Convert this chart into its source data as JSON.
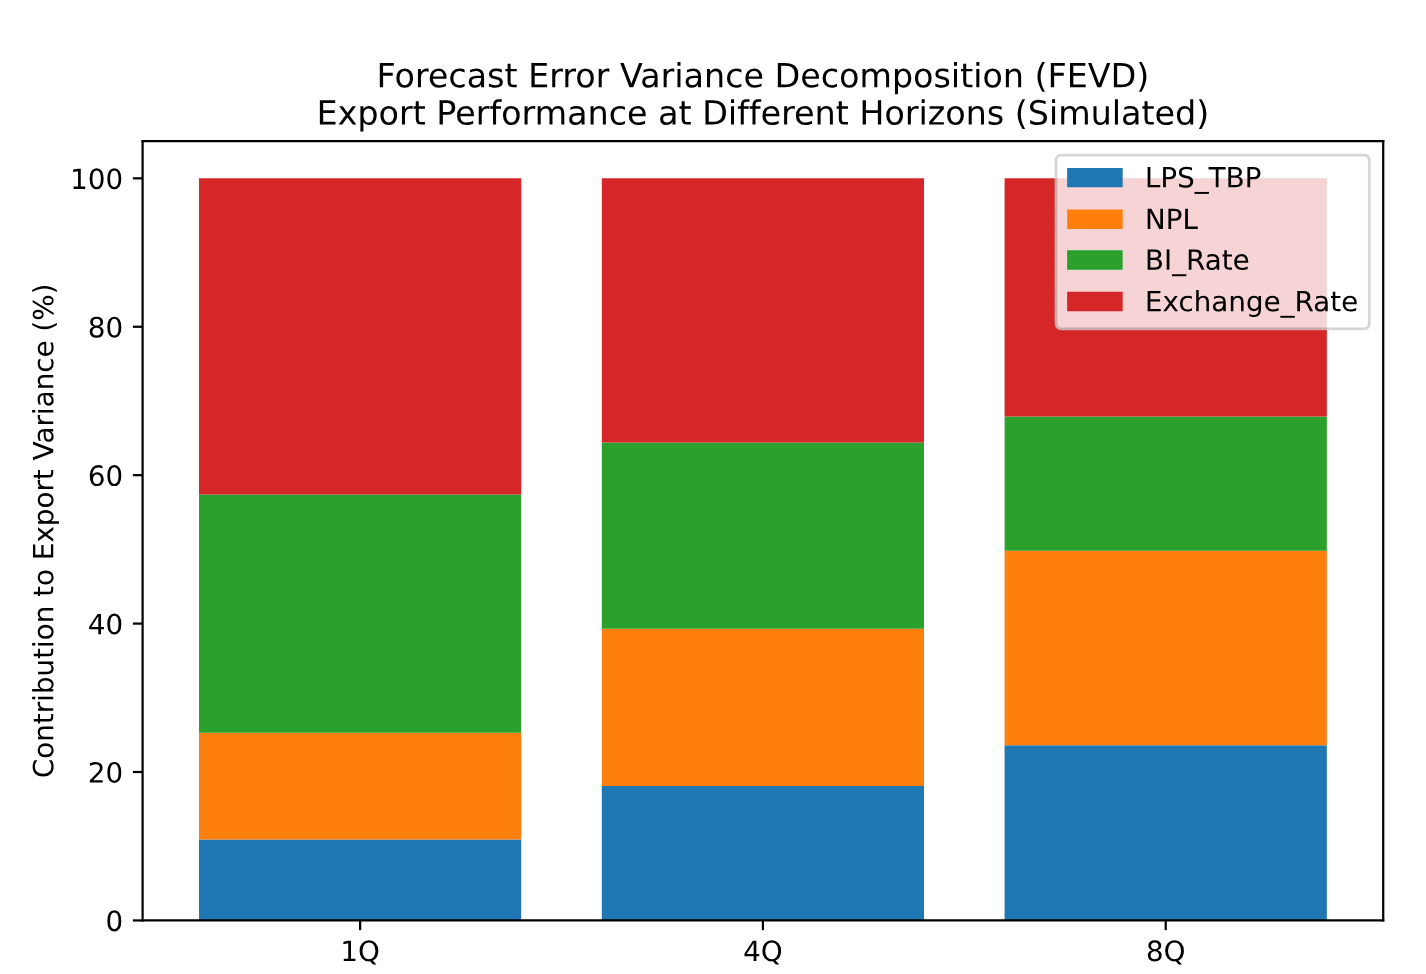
{
  "chart_data": {
    "type": "bar",
    "stacked": true,
    "title": "Forecast Error Variance Decomposition (FEVD)\nExport Performance at Different Horizons (Simulated)",
    "ylabel": "Contribution to Export Variance (%)",
    "categories": [
      "1Q",
      "4Q",
      "8Q"
    ],
    "series": [
      {
        "name": "LPS_TBP",
        "color": "#1f77b4",
        "values": [
          10.9,
          18.1,
          23.6
        ]
      },
      {
        "name": "NPL",
        "color": "#ff7f0e",
        "values": [
          14.4,
          21.2,
          26.2
        ]
      },
      {
        "name": "BI_Rate",
        "color": "#2ca02c",
        "values": [
          32.1,
          25.1,
          18.1
        ]
      },
      {
        "name": "Exchange_Rate",
        "color": "#d62728",
        "values": [
          42.6,
          35.6,
          32.1
        ]
      }
    ],
    "ylim": [
      0,
      105
    ],
    "yticks": [
      0,
      20,
      40,
      60,
      80,
      100
    ],
    "legend": "top right"
  }
}
